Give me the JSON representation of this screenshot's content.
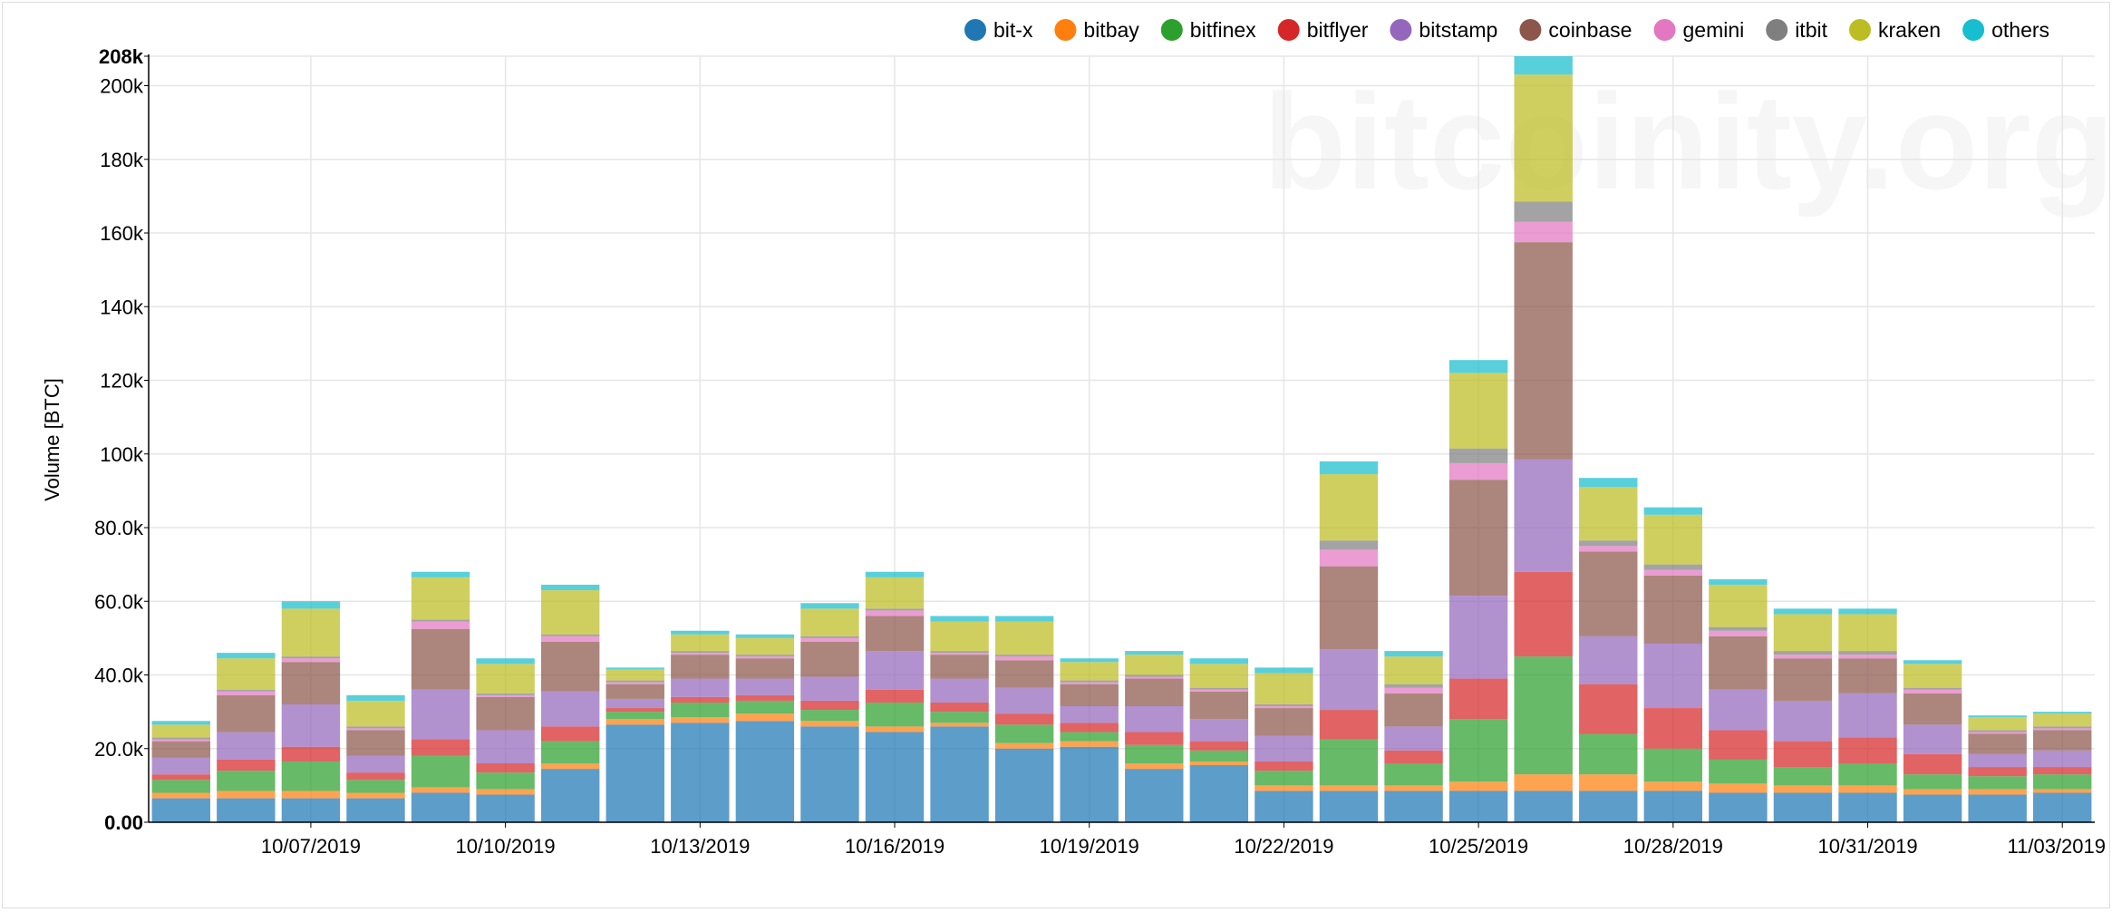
{
  "watermark": "bitcoinity.org",
  "chart_data": {
    "type": "bar",
    "stacked": true,
    "ylabel": "Volume [BTC]",
    "ylim": [
      0,
      208000
    ],
    "y_ticks": [
      {
        "value": 0,
        "label": "0.00",
        "bold": true
      },
      {
        "value": 20000,
        "label": "20.0k"
      },
      {
        "value": 40000,
        "label": "40.0k"
      },
      {
        "value": 60000,
        "label": "60.0k"
      },
      {
        "value": 80000,
        "label": "80.0k"
      },
      {
        "value": 100000,
        "label": "100k"
      },
      {
        "value": 120000,
        "label": "120k"
      },
      {
        "value": 140000,
        "label": "140k"
      },
      {
        "value": 160000,
        "label": "160k"
      },
      {
        "value": 180000,
        "label": "180k"
      },
      {
        "value": 200000,
        "label": "200k"
      },
      {
        "value": 208000,
        "label": "208k",
        "bold": true
      }
    ],
    "categories": [
      "10/05/2019",
      "10/06/2019",
      "10/07/2019",
      "10/08/2019",
      "10/09/2019",
      "10/10/2019",
      "10/11/2019",
      "10/12/2019",
      "10/13/2019",
      "10/14/2019",
      "10/15/2019",
      "10/16/2019",
      "10/17/2019",
      "10/18/2019",
      "10/19/2019",
      "10/20/2019",
      "10/21/2019",
      "10/22/2019",
      "10/23/2019",
      "10/24/2019",
      "10/25/2019",
      "10/26/2019",
      "10/27/2019",
      "10/28/2019",
      "10/29/2019",
      "10/30/2019",
      "10/31/2019",
      "11/01/2019",
      "11/02/2019",
      "11/03/2019"
    ],
    "x_tick_labels": [
      {
        "index": 2,
        "label": "10/07/2019"
      },
      {
        "index": 5,
        "label": "10/10/2019"
      },
      {
        "index": 8,
        "label": "10/13/2019"
      },
      {
        "index": 11,
        "label": "10/16/2019"
      },
      {
        "index": 14,
        "label": "10/19/2019"
      },
      {
        "index": 17,
        "label": "10/22/2019"
      },
      {
        "index": 20,
        "label": "10/25/2019"
      },
      {
        "index": 23,
        "label": "10/28/2019"
      },
      {
        "index": 26,
        "label": "10/31/2019"
      },
      {
        "index": 29,
        "label": "11/03/2019"
      }
    ],
    "legend_position": "top-right",
    "grid": true,
    "series": [
      {
        "name": "bit-x",
        "color": "#1f77b4",
        "values": [
          6500,
          6500,
          6500,
          6500,
          8000,
          7500,
          14500,
          26500,
          27000,
          27500,
          26000,
          24500,
          26000,
          20000,
          20500,
          14500,
          15500,
          8500,
          8500,
          8500,
          8500,
          8500,
          8500,
          8500,
          8000,
          8000,
          8000,
          7500,
          7500,
          8000
        ]
      },
      {
        "name": "bitbay",
        "color": "#ff7f0e",
        "values": [
          1500,
          2000,
          2000,
          1500,
          1500,
          1500,
          1500,
          1500,
          1500,
          2000,
          1500,
          1500,
          1000,
          1500,
          1500,
          1500,
          1000,
          1500,
          1500,
          1500,
          2500,
          4500,
          4500,
          2500,
          2500,
          2000,
          2000,
          1500,
          1500,
          1000
        ]
      },
      {
        "name": "bitfinex",
        "color": "#2ca02c",
        "values": [
          3500,
          5500,
          8000,
          3500,
          8500,
          4500,
          6000,
          2000,
          4000,
          3500,
          3000,
          6500,
          3000,
          5000,
          2500,
          5000,
          3000,
          4000,
          12500,
          6000,
          17000,
          32000,
          11000,
          9000,
          6500,
          5000,
          6000,
          4000,
          3500,
          4000
        ]
      },
      {
        "name": "bitflyer",
        "color": "#d62728",
        "values": [
          1500,
          3000,
          4000,
          2000,
          4500,
          2500,
          4000,
          1000,
          1500,
          1500,
          2500,
          3500,
          2500,
          3000,
          2500,
          3500,
          2500,
          2500,
          8000,
          3500,
          11000,
          23000,
          13500,
          11000,
          8000,
          7000,
          7000,
          5500,
          2500,
          2000
        ]
      },
      {
        "name": "bitstamp",
        "color": "#9467bd",
        "values": [
          4500,
          7500,
          11500,
          4500,
          13500,
          9000,
          9500,
          2500,
          5000,
          4500,
          6500,
          10500,
          6500,
          7000,
          4500,
          7000,
          6000,
          7000,
          16500,
          6500,
          22500,
          30500,
          13000,
          17500,
          11000,
          11000,
          12000,
          8000,
          3500,
          4500
        ]
      },
      {
        "name": "coinbase",
        "color": "#8c564b",
        "values": [
          4500,
          10000,
          11500,
          7000,
          16500,
          9000,
          13500,
          4000,
          6500,
          5500,
          9500,
          9500,
          6500,
          7500,
          6000,
          7500,
          7500,
          7500,
          22500,
          9000,
          31500,
          59000,
          23000,
          18500,
          14500,
          11500,
          9500,
          8500,
          5500,
          5500
        ]
      },
      {
        "name": "gemini",
        "color": "#e377c2",
        "values": [
          500,
          1000,
          1000,
          500,
          2000,
          500,
          1500,
          500,
          500,
          500,
          1000,
          1500,
          500,
          1000,
          500,
          500,
          500,
          500,
          4500,
          1500,
          4500,
          5500,
          1500,
          1500,
          1500,
          1000,
          1000,
          1000,
          500,
          500
        ]
      },
      {
        "name": "itbit",
        "color": "#7f7f7f",
        "values": [
          500,
          500,
          500,
          500,
          500,
          500,
          500,
          500,
          500,
          500,
          500,
          500,
          500,
          500,
          500,
          500,
          500,
          500,
          2500,
          1000,
          4000,
          5500,
          1500,
          1500,
          1000,
          1000,
          1000,
          500,
          500,
          500
        ]
      },
      {
        "name": "kraken",
        "color": "#bcbd22",
        "values": [
          3500,
          8500,
          13000,
          7000,
          11500,
          8000,
          12000,
          3000,
          4500,
          4500,
          7500,
          8500,
          8000,
          9000,
          5000,
          5500,
          6500,
          8500,
          18000,
          7500,
          20500,
          34500,
          14500,
          13500,
          11500,
          10000,
          10000,
          6500,
          3500,
          3500
        ]
      },
      {
        "name": "others",
        "color": "#17becf",
        "values": [
          1000,
          1500,
          2000,
          1500,
          1500,
          1500,
          1500,
          500,
          1000,
          1000,
          1500,
          1500,
          1500,
          1500,
          1000,
          1000,
          1500,
          1500,
          3500,
          1500,
          3500,
          10000,
          2500,
          2000,
          1500,
          1500,
          1500,
          1000,
          500,
          500
        ]
      }
    ]
  }
}
